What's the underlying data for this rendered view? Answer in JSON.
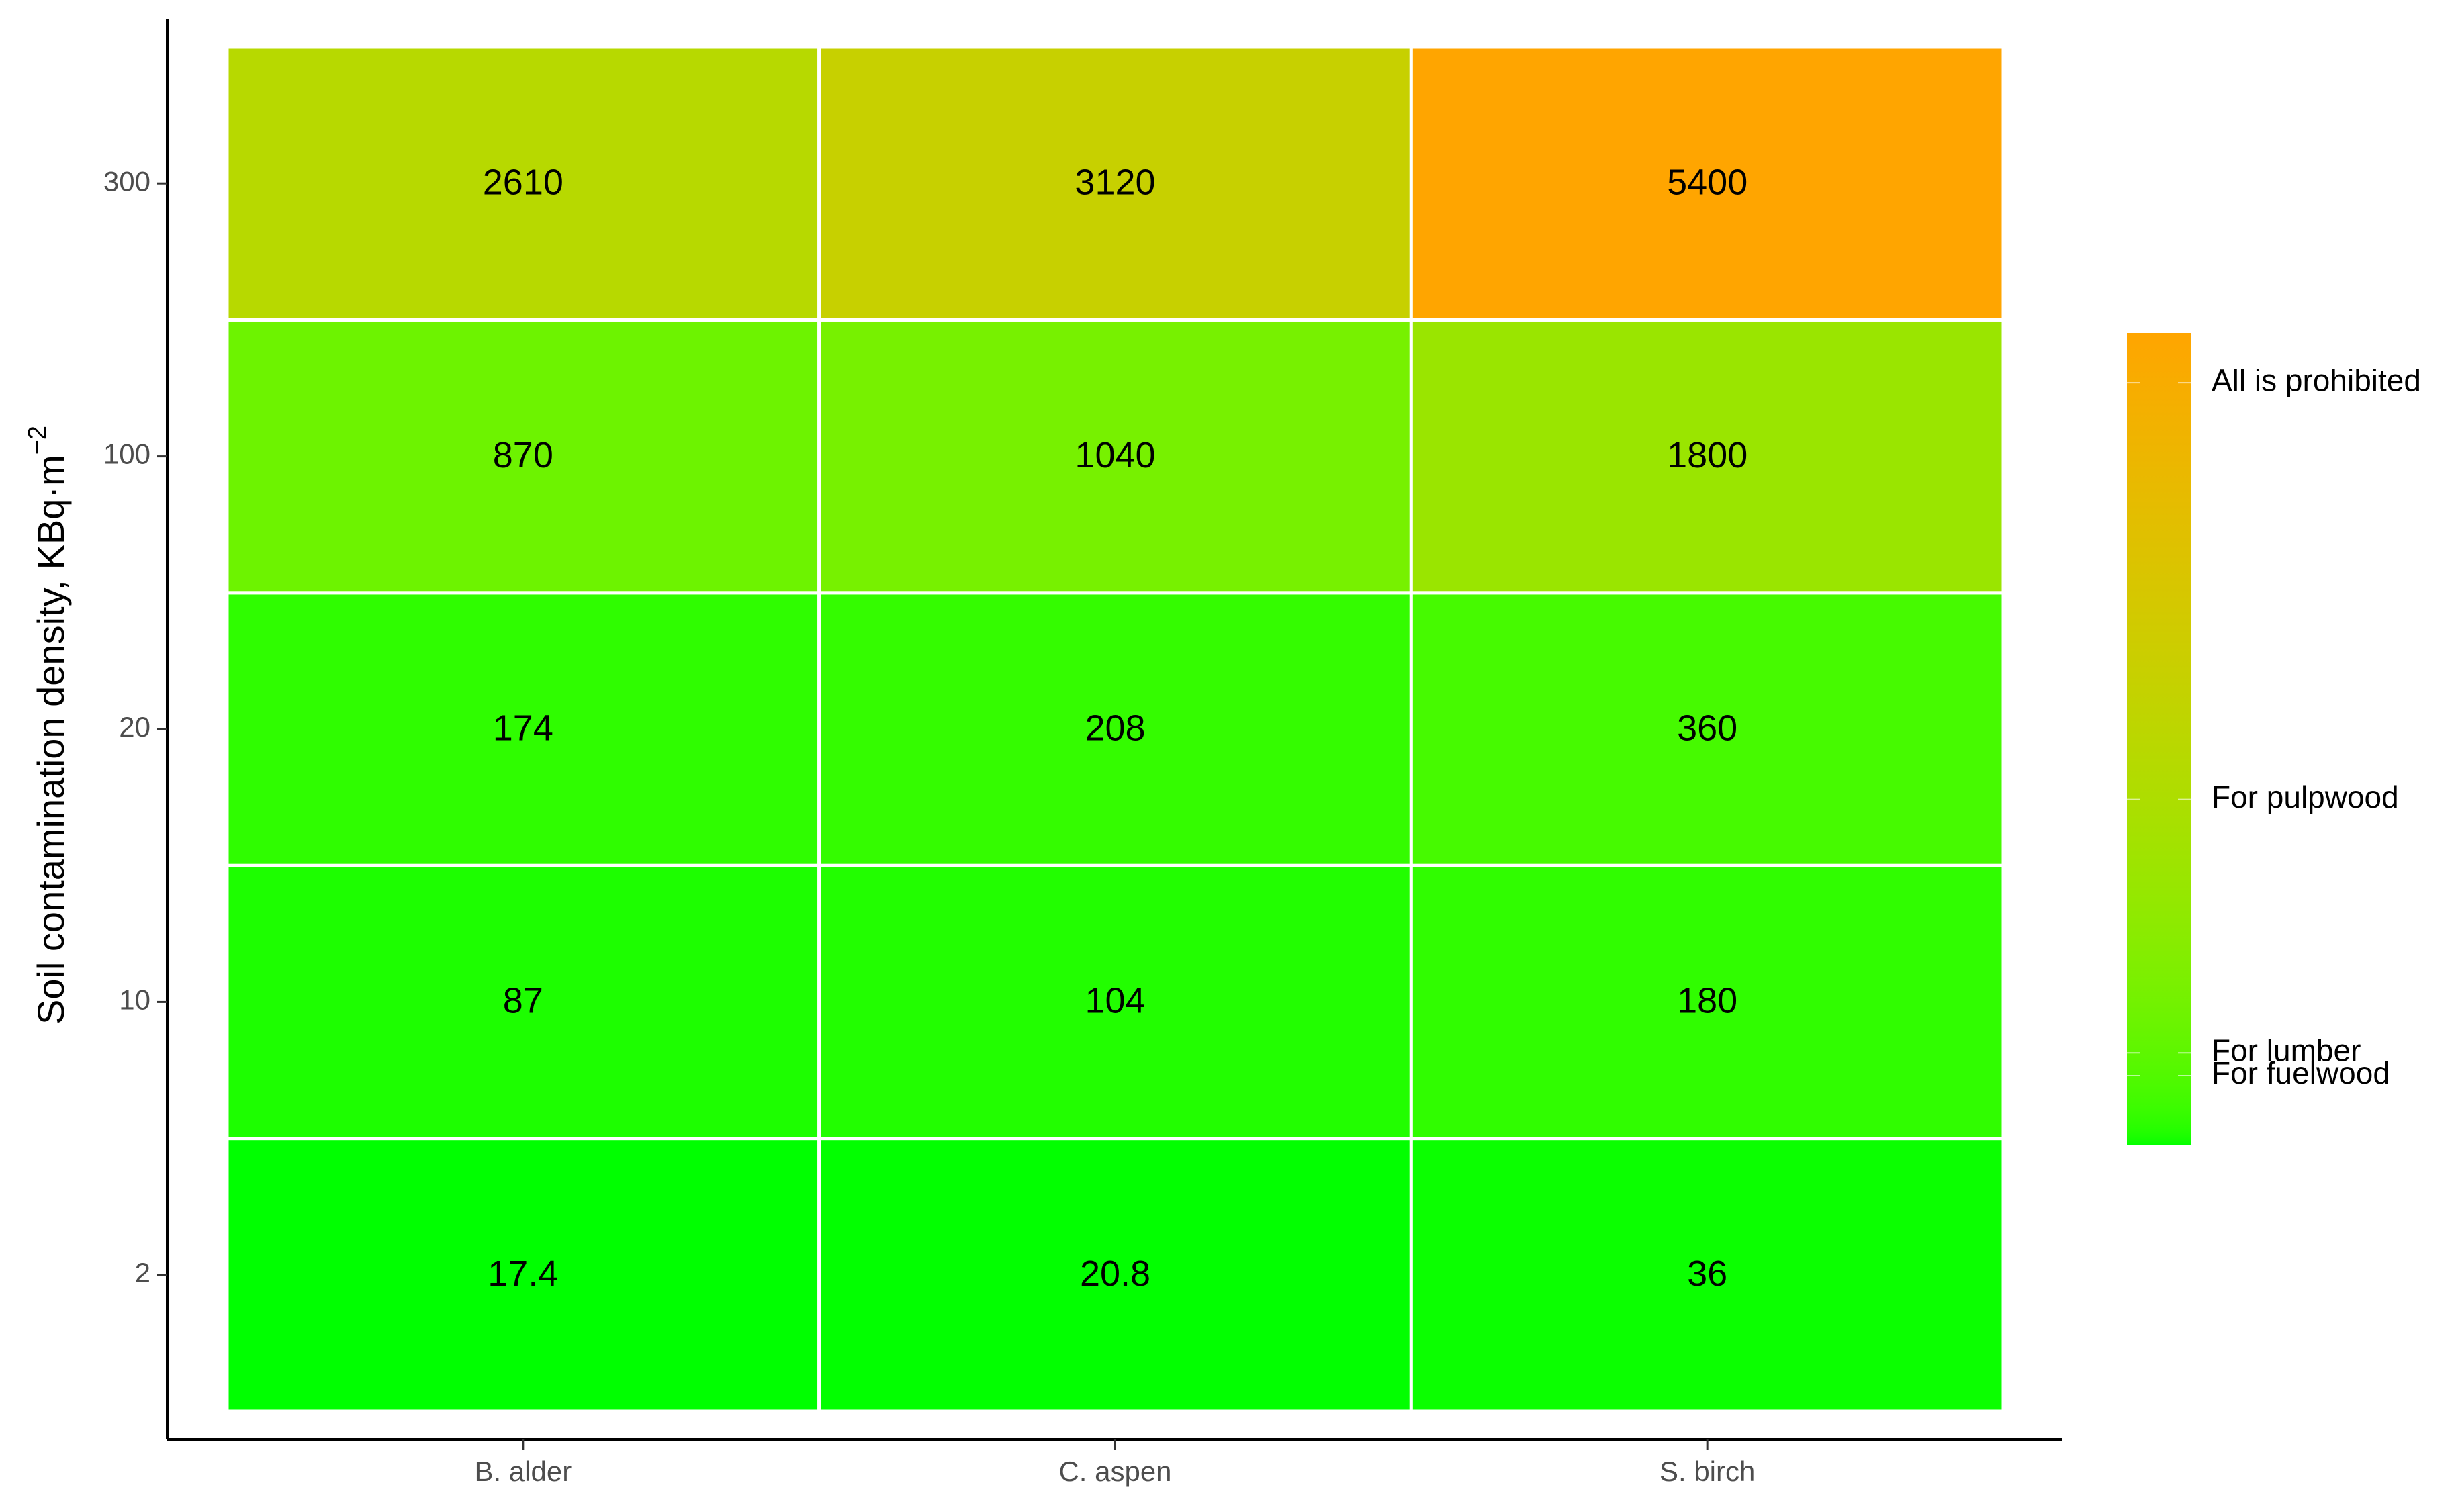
{
  "chart_data": {
    "type": "heatmap",
    "x_categories": [
      "B. alder",
      "C. aspen",
      "S. birch"
    ],
    "y_categories": [
      "2",
      "10",
      "20",
      "100",
      "300"
    ],
    "values": [
      [
        17.4,
        20.8,
        36
      ],
      [
        87,
        104,
        180
      ],
      [
        174,
        208,
        360
      ],
      [
        870,
        1040,
        1800
      ],
      [
        2610,
        3120,
        5400
      ]
    ],
    "y_label": "Soil contamination density, KBq·m",
    "y_label_exponent": "−2",
    "colors": {
      "low": "#00ff00",
      "high": "#ffa500"
    },
    "colorbar": {
      "lim": [
        17.4,
        5400
      ],
      "ticks": [
        {
          "value": 5070,
          "label": "All is prohibited"
        },
        {
          "value": 2310,
          "label": "For pulpwood"
        },
        {
          "value": 630,
          "label": "For lumber"
        },
        {
          "value": 480,
          "label": "For fuelwood"
        }
      ]
    }
  }
}
